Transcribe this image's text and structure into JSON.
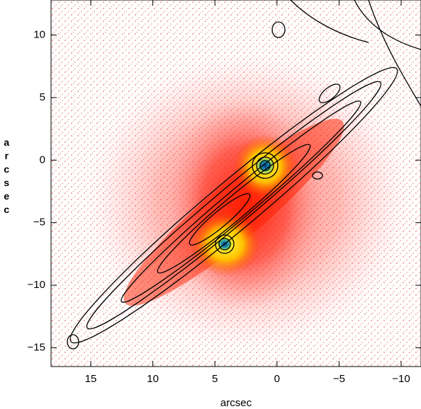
{
  "chart_data": {
    "type": "image",
    "xlabel": "arcsec",
    "ylabel": "arcsec",
    "xlim": [
      18.2,
      -11.6
    ],
    "ylim": [
      -16.5,
      12.8
    ],
    "xticks": [
      15,
      10,
      5,
      0,
      {
        "value": -5,
        "label": "−5"
      },
      {
        "value": -10,
        "label": "−10"
      }
    ],
    "yticks": [
      {
        "value": -15,
        "label": "−15"
      },
      {
        "value": -10,
        "label": "−10"
      },
      {
        "value": -5,
        "label": "−5"
      },
      0,
      5,
      10
    ]
  }
}
